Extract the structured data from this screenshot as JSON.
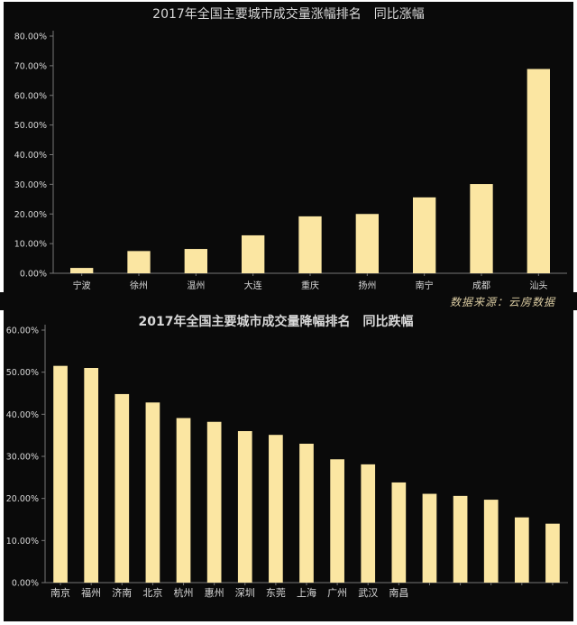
{
  "source_note": "数据来源：云房数据",
  "colors": {
    "bar": "#fbe6a2",
    "axis": "#777777",
    "text": "#d9d9d9",
    "background": "#0a0a0a"
  },
  "chart_data": [
    {
      "type": "bar",
      "title": "2017年全国主要城市成交量涨幅排名　同比涨幅",
      "categories": [
        "宁波",
        "徐州",
        "温州",
        "大连",
        "重庆",
        "扬州",
        "南宁",
        "成都",
        "汕头"
      ],
      "values": [
        1.8,
        7.5,
        8.2,
        12.8,
        19.2,
        20.0,
        25.6,
        30.1,
        68.9
      ],
      "ylim": [
        0,
        80
      ],
      "yticks": [
        0,
        10,
        20,
        30,
        40,
        50,
        60,
        70,
        80
      ],
      "ytick_labels": [
        "0.00%",
        "10.00%",
        "20.00%",
        "30.00%",
        "40.00%",
        "50.00%",
        "60.00%",
        "70.00%",
        "80.00%"
      ],
      "grid": false
    },
    {
      "type": "bar",
      "title": "2017年全国主要城市成交量降幅排名　同比跌幅",
      "categories": [
        "南京",
        "福州",
        "济南",
        "北京",
        "杭州",
        "惠州",
        "深圳",
        "东莞",
        "上海",
        "广州",
        "武汉",
        "南昌",
        "",
        "",
        "",
        "",
        ""
      ],
      "values": [
        51.5,
        51.0,
        44.8,
        42.8,
        39.1,
        38.2,
        36.0,
        35.1,
        33.0,
        29.3,
        28.1,
        23.8,
        21.1,
        20.6,
        19.7,
        15.5,
        14.0
      ],
      "ylim": [
        0,
        60
      ],
      "yticks": [
        0,
        10,
        20,
        30,
        40,
        50,
        60
      ],
      "ytick_labels": [
        "0.00%",
        "10.00%",
        "20.00%",
        "30.00%",
        "40.00%",
        "50.00%",
        "60.00%"
      ],
      "grid": false
    }
  ]
}
